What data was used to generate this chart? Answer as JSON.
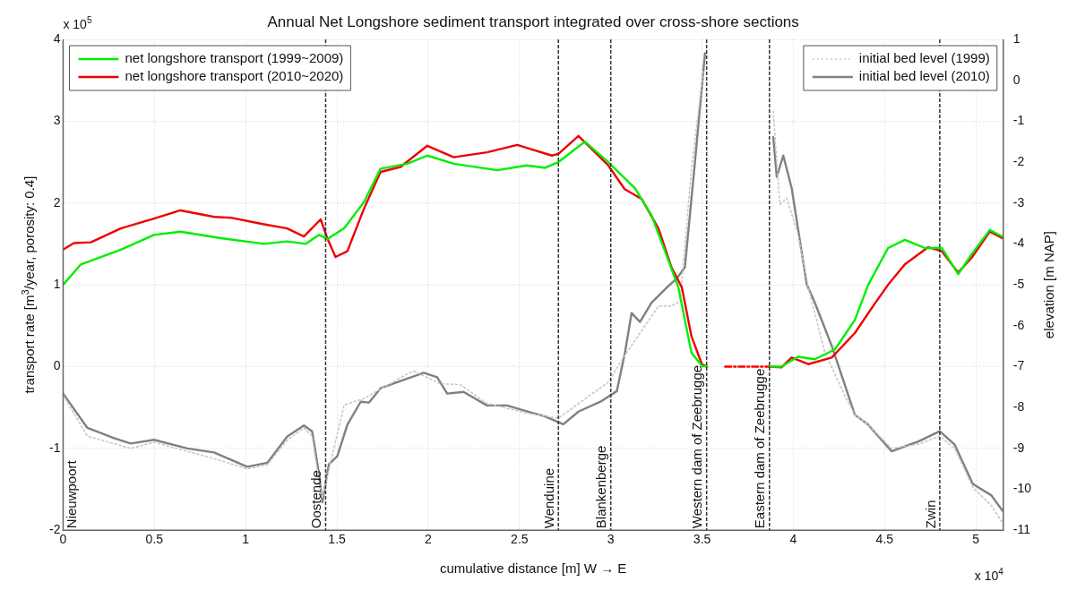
{
  "chart_data": {
    "type": "line",
    "title": "Annual Net Longshore sediment transport integrated over cross-shore sections",
    "xlabel": "cumulative distance [m] W → E",
    "ylabel": "transport rate [m$^{3}$/year, porosity: 0.4]",
    "y2label": "elevation [m NAP]",
    "annotations": [
      "x 10$^{5}$",
      "x 10$^{4}$",
      "Nieuwpoort"
    ],
    "xlim": [
      0,
      5.15
    ],
    "xticks": [
      0,
      0.5,
      1,
      1.5,
      2,
      2.5,
      3,
      3.5,
      4,
      4.5,
      5
    ],
    "ylim": [
      -2,
      4
    ],
    "yticks": [
      -2,
      -1,
      0,
      1,
      2,
      3,
      4
    ],
    "y2lim": [
      -11,
      1
    ],
    "y2ticks": [
      -11,
      -10,
      -9,
      -8,
      -7,
      -6,
      -5,
      -4,
      -3,
      -2,
      -1,
      0,
      1
    ],
    "grid": true,
    "legend": "top",
    "marker": "none",
    "ref_lines": [
      {
        "axis": "x",
        "value": 1.438,
        "label": "Oostende",
        "color": "#333333",
        "line_style": "dashed"
      },
      {
        "axis": "x",
        "value": 2.713,
        "label": "Wenduine",
        "color": "#333333",
        "line_style": "dashed"
      },
      {
        "axis": "x",
        "value": 3,
        "label": "Blankenberge",
        "color": "#333333",
        "line_style": "dashed"
      },
      {
        "axis": "x",
        "value": 3.525,
        "label": "Western dam of Zeebrugge",
        "color": "#333333",
        "line_style": "dashed"
      },
      {
        "axis": "x",
        "value": 3.869,
        "label": "Eastern dam of Zeebrugge",
        "color": "#333333",
        "line_style": "dashed"
      },
      {
        "axis": "x",
        "value": 4.802,
        "label": "Zwin",
        "color": "#333333",
        "line_style": "dashed"
      }
    ],
    "series": [
      {
        "name": "net longshore transport (1999~2009)",
        "color": "#00ee00",
        "line_style": "solid",
        "x": [
          0,
          0.097,
          0.316,
          0.498,
          0.643,
          0.863,
          1.1,
          1.227,
          1.328,
          1.402,
          1.447,
          1.539,
          1.648,
          1.739,
          1.886,
          1.995,
          2.14,
          2.378,
          2.54,
          2.64,
          2.713,
          2.858,
          2.986,
          3.133,
          3.223,
          3.297,
          3.37,
          3.442,
          3.499,
          3.527,
          null,
          3.872,
          3.935,
          4.025,
          4.118,
          4.228,
          4.337,
          4.41,
          4.519,
          4.611,
          4.72,
          4.813,
          4.903,
          4.976,
          5.076,
          5.145
        ],
        "values": [
          1.0,
          1.25,
          1.43,
          1.61,
          1.65,
          1.57,
          1.5,
          1.53,
          1.5,
          1.61,
          1.56,
          1.69,
          2.01,
          2.42,
          2.48,
          2.58,
          2.48,
          2.4,
          2.46,
          2.43,
          2.5,
          2.75,
          2.5,
          2.18,
          1.85,
          1.41,
          0.97,
          0.17,
          0.01,
          0,
          null,
          0,
          0,
          0.12,
          0.09,
          0.21,
          0.57,
          1.0,
          1.45,
          1.55,
          1.45,
          1.45,
          1.13,
          1.37,
          1.67,
          1.59
        ]
      },
      {
        "name": "net longshore transport (2010~2020)",
        "color": "#ee0000",
        "line_style": "solid",
        "x": [
          0,
          0.059,
          0.152,
          0.316,
          0.498,
          0.643,
          0.828,
          0.918,
          1.1,
          1.227,
          1.319,
          1.411,
          1.447,
          1.492,
          1.557,
          1.648,
          1.739,
          1.848,
          1.995,
          2.14,
          2.322,
          2.488,
          2.531,
          2.677,
          2.713,
          2.823,
          2.986,
          3.076,
          3.169,
          3.261,
          3.333,
          3.389,
          3.442,
          3.499,
          3.527,
          null,
          3.872,
          3.935,
          3.99,
          4.082,
          4.21,
          4.337,
          4.446,
          4.519,
          4.611,
          4.739,
          4.813,
          4.903,
          4.976,
          5.076,
          5.145
        ],
        "values": [
          1.43,
          1.51,
          1.52,
          1.69,
          1.81,
          1.91,
          1.83,
          1.82,
          1.74,
          1.69,
          1.59,
          1.8,
          1.57,
          1.34,
          1.41,
          1.93,
          2.38,
          2.44,
          2.7,
          2.56,
          2.62,
          2.71,
          2.68,
          2.58,
          2.6,
          2.82,
          2.46,
          2.17,
          2.05,
          1.69,
          1.21,
          0.97,
          0.37,
          0.03,
          0,
          null,
          0,
          -0.01,
          0.11,
          0.03,
          0.11,
          0.41,
          0.77,
          1.0,
          1.25,
          1.46,
          1.41,
          1.15,
          1.33,
          1.65,
          1.57
        ]
      },
      {
        "color": "#ff0000",
        "line_style": "dashed",
        "x": [
          3.626,
          3.872
        ],
        "values": [
          0,
          0
        ]
      },
      {
        "name": "initial bed level (1999)",
        "color": "#c8c8c8",
        "line_style": "dotted",
        "axis": "y2",
        "x": [
          0,
          0.133,
          0.37,
          0.498,
          0.827,
          1.008,
          1.119,
          1.228,
          1.319,
          1.364,
          1.402,
          1.42,
          1.539,
          1.648,
          1.886,
          1.921,
          2.066,
          2.175,
          2.322,
          2.54,
          2.713,
          2.986,
          3.076,
          3.261,
          3.333,
          3.38,
          3.442,
          3.507,
          null,
          3.89,
          3.926,
          3.964,
          4.025,
          4.082,
          4.172,
          4.281,
          4.337,
          4.41,
          4.538,
          4.685,
          4.802,
          4.884,
          4.983,
          5.085,
          5.145
        ],
        "values": [
          -7.7,
          -8.7,
          -9.0,
          -8.85,
          -9.25,
          -9.5,
          -9.4,
          -8.8,
          -8.5,
          -8.7,
          -9.8,
          -10.2,
          -7.94,
          -7.78,
          -7.18,
          -7.11,
          -7.42,
          -7.44,
          -7.9,
          -8.14,
          -8.26,
          -7.38,
          -6.73,
          -5.52,
          -5.52,
          -5.4,
          -2.15,
          0.26,
          null,
          -0.75,
          -3.04,
          -2.88,
          -3.76,
          -5.06,
          -6.65,
          -7.7,
          -8.18,
          -8.42,
          -9.0,
          -8.9,
          -8.7,
          -9.0,
          -9.95,
          -10.4,
          -10.82
        ]
      },
      {
        "name": "initial bed level (2010)",
        "color": "#808080",
        "line_style": "solid",
        "axis": "y2",
        "x": [
          0,
          0.133,
          0.279,
          0.37,
          0.498,
          0.681,
          0.827,
          1.008,
          1.119,
          1.228,
          1.319,
          1.364,
          1.402,
          1.42,
          1.456,
          1.502,
          1.557,
          1.63,
          1.675,
          1.739,
          1.83,
          1.976,
          2.049,
          2.104,
          2.194,
          2.322,
          2.431,
          2.531,
          2.64,
          2.74,
          2.823,
          2.951,
          3.033,
          3.078,
          3.114,
          3.16,
          3.223,
          3.313,
          3.361,
          3.406,
          3.461,
          3.516,
          null,
          3.89,
          3.909,
          3.945,
          3.991,
          4.073,
          4.118,
          4.21,
          4.337,
          4.41,
          4.538,
          4.685,
          4.802,
          4.884,
          4.983,
          5.085,
          5.145
        ],
        "values": [
          -7.66,
          -8.5,
          -8.75,
          -8.88,
          -8.79,
          -9.0,
          -9.1,
          -9.45,
          -9.35,
          -8.71,
          -8.44,
          -8.58,
          -9.63,
          -10.32,
          -9.39,
          -9.19,
          -8.42,
          -7.86,
          -7.88,
          -7.53,
          -7.38,
          -7.15,
          -7.26,
          -7.66,
          -7.62,
          -7.95,
          -7.95,
          -8.08,
          -8.22,
          -8.41,
          -8.1,
          -7.84,
          -7.6,
          -6.65,
          -5.69,
          -5.91,
          -5.44,
          -5.04,
          -4.85,
          -4.57,
          -2.0,
          0.66,
          null,
          -1.39,
          -2.36,
          -1.84,
          -2.64,
          -4.98,
          -5.44,
          -6.49,
          -8.18,
          -8.42,
          -9.07,
          -8.83,
          -8.58,
          -8.91,
          -9.87,
          -10.15,
          -10.52
        ]
      }
    ]
  }
}
